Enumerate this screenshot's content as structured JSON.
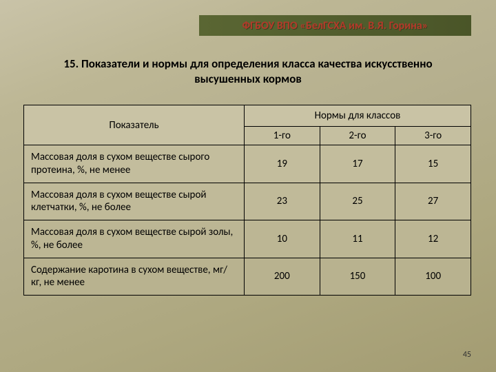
{
  "banner": {
    "text": "ФГБОУ ВПО «БелГСХА им. В.Я. Горина»"
  },
  "title": "15. Показатели и нормы для определения класса качества искусственно высушенных кормов",
  "table": {
    "header": {
      "indicator": "Показатель",
      "norms": "Нормы для классов",
      "cols": {
        "c1": "1-го",
        "c2": "2-го",
        "c3": "3-го"
      }
    },
    "rows": [
      {
        "label": "Массовая доля в сухом веществе сырого протеина, %, не менее",
        "v1": "19",
        "v2": "17",
        "v3": "15"
      },
      {
        "label": "Массовая доля в сухом веществе сырой клетчатки, %, не более",
        "v1": "23",
        "v2": "25",
        "v3": "27"
      },
      {
        "label": "Массовая доля в сухом веществе сырой золы, %, не более",
        "v1": "10",
        "v2": "11",
        "v3": "12"
      },
      {
        "label": "Содержание каротина в сухом веществе, мг/кг, не менее",
        "v1": "200",
        "v2": "150",
        "v3": "100"
      }
    ]
  },
  "page_number": "45"
}
